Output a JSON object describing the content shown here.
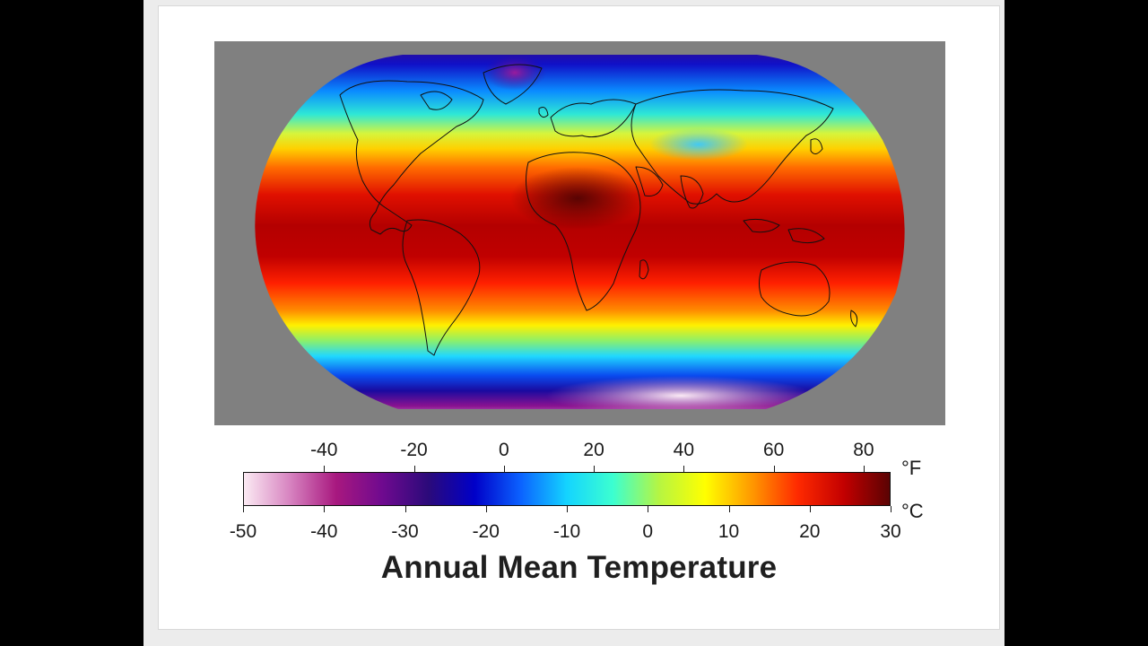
{
  "title": "Annual Mean Temperature",
  "scale": {
    "fahrenheit_unit": "°F",
    "celsius_unit": "°C",
    "fahrenheit_ticks": [
      "-40",
      "-20",
      "0",
      "20",
      "40",
      "60",
      "80"
    ],
    "fahrenheit_values": [
      -40,
      -20,
      0,
      20,
      40,
      60,
      80
    ],
    "celsius_ticks": [
      "-50",
      "-40",
      "-30",
      "-20",
      "-10",
      "0",
      "10",
      "20",
      "30"
    ],
    "celsius_values": [
      -50,
      -40,
      -30,
      -20,
      -10,
      0,
      10,
      20,
      30
    ],
    "celsius_range": [
      -50,
      30
    ],
    "colors": [
      "#fbeaf3",
      "#d783c0",
      "#a8187f",
      "#6f0a8f",
      "#2b0a7a",
      "#0000c8",
      "#0b62ff",
      "#14d4ff",
      "#3cffd0",
      "#b6f542",
      "#ffff00",
      "#ff9a00",
      "#ff2a00",
      "#c30000",
      "#5a0303"
    ]
  },
  "map": {
    "background_color": "#808080",
    "projection_shape": "robinson-like ellipse"
  }
}
